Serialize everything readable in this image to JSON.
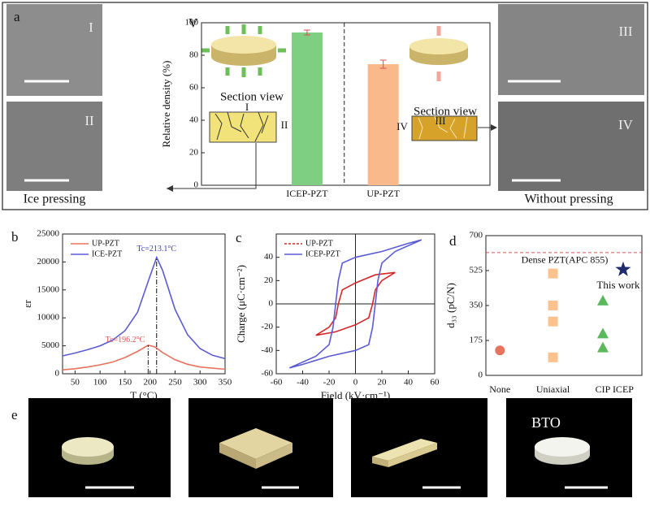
{
  "panel_labels": [
    "a",
    "b",
    "c",
    "d",
    "e"
  ],
  "panel_a": {
    "image_labels": [
      "I",
      "II",
      "III",
      "IV"
    ],
    "captions": [
      "Ice pressing",
      "Without pressing"
    ]
  },
  "panel_e": {
    "image_labels": [
      "BTO"
    ]
  },
  "chart_data": [
    {
      "type": "bar",
      "label": "V",
      "categories": [
        "ICEP-PZT",
        "UP-PZT"
      ],
      "values": [
        94,
        74.5
      ],
      "errors": [
        1.5,
        2.5
      ],
      "colors": [
        "#7fcf83",
        "#f9b98a"
      ],
      "error_color": "#e05050",
      "ylabel": "Relative density (%)",
      "ylim": [
        0,
        100
      ],
      "yticks": [
        0,
        20,
        40,
        60,
        80,
        100
      ],
      "annotations": [
        "Section view",
        "I",
        "II",
        "Section view",
        "III",
        "IV"
      ]
    },
    {
      "type": "line",
      "xlabel": "T (°C)",
      "ylabel": "εr",
      "xlim": [
        25,
        350
      ],
      "xticks": [
        50,
        100,
        150,
        200,
        250,
        300,
        350
      ],
      "ylim": [
        0,
        25000
      ],
      "yticks": [
        0,
        5000,
        10000,
        15000,
        20000,
        25000
      ],
      "series": [
        {
          "name": "UP-PZT",
          "color": "#e8735f",
          "x": [
            25,
            50,
            75,
            100,
            125,
            150,
            175,
            196.2,
            210,
            225,
            250,
            275,
            300,
            325,
            350
          ],
          "values": [
            700,
            900,
            1200,
            1600,
            2100,
            2900,
            4000,
            5100,
            4800,
            3800,
            2500,
            1700,
            1200,
            1000,
            800
          ]
        },
        {
          "name": "ICE-PZT",
          "color": "#5b5bd6",
          "x": [
            25,
            50,
            75,
            100,
            125,
            150,
            175,
            200,
            213.1,
            225,
            250,
            275,
            300,
            325,
            350
          ],
          "values": [
            3200,
            3700,
            4300,
            5000,
            6000,
            7700,
            11000,
            17500,
            20800,
            18500,
            11500,
            7000,
            4500,
            3300,
            2700
          ]
        }
      ],
      "markers": [
        {
          "x": 196.2,
          "label": "Tc=196.2°C",
          "color": "#d9534f"
        },
        {
          "x": 213.1,
          "label": "Tc=213.1°C",
          "color": "#3a3ab8"
        }
      ]
    },
    {
      "type": "line",
      "xlabel": "Field (kV·cm⁻¹)",
      "ylabel": "Charge (μC·cm⁻²)",
      "xlim": [
        -60,
        60
      ],
      "xticks": [
        -60,
        -40,
        -20,
        0,
        20,
        40,
        60
      ],
      "ylim": [
        -60,
        60
      ],
      "yticks": [
        -60,
        -40,
        -20,
        0,
        20,
        40
      ],
      "zero_lines": true,
      "series": [
        {
          "name": "UP-PZT",
          "color": "#d62728",
          "x": [
            30,
            15,
            0,
            -10,
            -13,
            -15,
            -20,
            -30,
            -15,
            0,
            10,
            13,
            15,
            20,
            30
          ],
          "values": [
            27,
            25,
            18,
            12,
            0,
            -12,
            -20,
            -27,
            -24,
            -18,
            -12,
            0,
            12,
            20,
            27
          ]
        },
        {
          "name": "ICEP-PZT",
          "color": "#5b5bd6",
          "x": [
            50,
            40,
            20,
            0,
            -10,
            -13,
            -15,
            -17,
            -20,
            -30,
            -50,
            -40,
            -20,
            0,
            10,
            13,
            15,
            17,
            20,
            30,
            50
          ],
          "values": [
            55,
            52,
            45,
            40,
            35,
            20,
            0,
            -20,
            -35,
            -45,
            -55,
            -52,
            -45,
            -40,
            -35,
            -20,
            0,
            20,
            35,
            45,
            55
          ]
        }
      ]
    },
    {
      "type": "scatter",
      "categories": [
        "None",
        "Uniaxial",
        "CIP",
        "ICEP"
      ],
      "values": [
        [
          125
        ],
        [
          510,
          350,
          270,
          90
        ],
        [
          375,
          210,
          140
        ],
        [
          530
        ]
      ],
      "colors": [
        "#e8735f",
        "#f9c28f",
        "#5cb85c",
        "#1f2a6e"
      ],
      "markers": [
        "circle",
        "square",
        "triangle",
        "star"
      ],
      "ylabel": "d₃₃ (pC/N)",
      "ylim": [
        0,
        700
      ],
      "yticks": [
        0,
        175,
        350,
        525,
        700
      ],
      "reference": {
        "value": 615,
        "label": "Dense PZT(APC 855)",
        "color": "#d9534f"
      },
      "annotations": [
        "This work"
      ]
    }
  ]
}
